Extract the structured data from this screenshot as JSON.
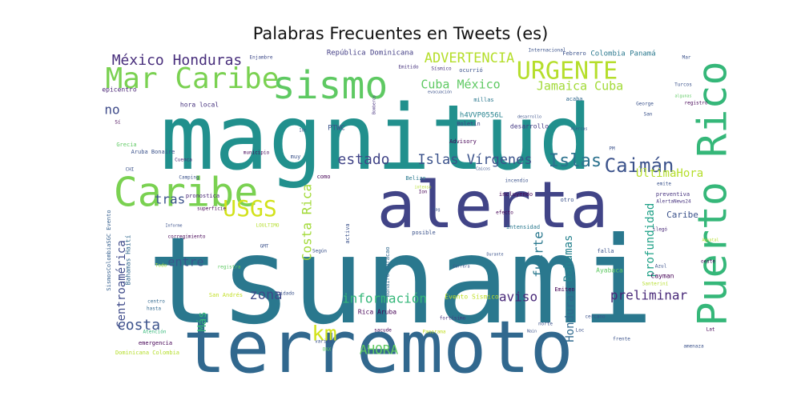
{
  "chart_data": {
    "type": "wordcloud",
    "title": "Palabras Frecuentes en Tweets (es)",
    "colormap": "viridis",
    "background": "#ffffff",
    "words": [
      {
        "text": "tsunami",
        "weight": 100,
        "color": "#2a788e"
      },
      {
        "text": "magnitud",
        "weight": 88,
        "color": "#21908d"
      },
      {
        "text": "terremoto",
        "weight": 76,
        "color": "#31688e"
      },
      {
        "text": "alerta",
        "weight": 64,
        "color": "#414487"
      },
      {
        "text": "sismo",
        "weight": 40,
        "color": "#5ec962"
      },
      {
        "text": "Caribe",
        "weight": 38,
        "color": "#7ad151"
      },
      {
        "text": "Puerto Rico",
        "weight": 38,
        "color": "#35b779"
      },
      {
        "text": "Mar Caribe",
        "weight": 28,
        "color": "#7ad151"
      },
      {
        "text": "URGENTE",
        "weight": 22,
        "color": "#b5de2b"
      },
      {
        "text": "USGS",
        "weight": 22,
        "color": "#d2e21b"
      },
      {
        "text": "Caimán",
        "weight": 20,
        "color": "#3b528b"
      },
      {
        "text": "Islas Vírgenes",
        "weight": 14,
        "color": "#3b528b"
      },
      {
        "text": "Islas",
        "weight": 18,
        "color": "#2c728e"
      },
      {
        "text": "km",
        "weight": 20,
        "color": "#d2e21b"
      },
      {
        "text": "estado",
        "weight": 16,
        "color": "#414487"
      },
      {
        "text": "México Honduras",
        "weight": 15,
        "color": "#472d7b"
      },
      {
        "text": "ADVERTENCIA",
        "weight": 14,
        "color": "#b5de2b"
      },
      {
        "text": "Costa Rica",
        "weight": 14,
        "color": "#a2da37"
      },
      {
        "text": "información",
        "weight": 14,
        "color": "#35b779"
      },
      {
        "text": "Cuba México",
        "weight": 13,
        "color": "#5ec962"
      },
      {
        "text": "Jamaica Cuba",
        "weight": 13,
        "color": "#a2da37"
      },
      {
        "text": "costa",
        "weight": 15,
        "color": "#3b528b"
      },
      {
        "text": "zona",
        "weight": 14,
        "color": "#3e4989"
      },
      {
        "text": "tras",
        "weight": 13,
        "color": "#3b528b"
      },
      {
        "text": "entre",
        "weight": 13,
        "color": "#39558c"
      },
      {
        "text": "aviso",
        "weight": 13,
        "color": "#482878"
      },
      {
        "text": "preliminar",
        "weight": 13,
        "color": "#482878"
      },
      {
        "text": "fuerte",
        "weight": 13,
        "color": "#2a788e"
      },
      {
        "text": "profundidad",
        "weight": 12,
        "color": "#1fa187"
      },
      {
        "text": "Bahamas",
        "weight": 12,
        "color": "#26828e"
      },
      {
        "text": "Honduras",
        "weight": 12,
        "color": "#306a8e"
      },
      {
        "text": "Centroamérica",
        "weight": 11,
        "color": "#3e4a89"
      },
      {
        "text": "AHORA",
        "weight": 13,
        "color": "#5ec962"
      },
      {
        "text": "Más",
        "weight": 12,
        "color": "#35b779"
      },
      {
        "text": "ÚltimaHora",
        "weight": 12,
        "color": "#b5de2b"
      },
      {
        "text": "Caribe",
        "weight": 9,
        "color": "#3b528b"
      },
      {
        "text": "no",
        "weight": 12,
        "color": "#3e4a89"
      },
      {
        "text": "República Dominicana",
        "weight": 7,
        "color": "#433e85"
      },
      {
        "text": "Colombia Panamá",
        "weight": 7,
        "color": "#2a788e"
      },
      {
        "text": "h4VVP0556L",
        "weight": 7,
        "color": "#26828e"
      },
      {
        "text": "PTWC",
        "weight": 7,
        "color": "#3b528b"
      },
      {
        "text": "Bahamas Haití",
        "weight": 6,
        "color": "#31688e"
      },
      {
        "text": "SismosColombiaSGC Evento",
        "weight": 5,
        "color": "#355f8d"
      },
      {
        "text": "desarrollo",
        "weight": 6,
        "color": "#443983"
      },
      {
        "text": "epicentro",
        "weight": 6,
        "color": "#482475"
      },
      {
        "text": "hora local",
        "weight": 6,
        "color": "#46327e"
      },
      {
        "text": "Evento Sísmico",
        "weight": 6,
        "color": "#c0df25"
      },
      {
        "text": "Bonaire Curacao",
        "weight": 5,
        "color": "#31688e"
      },
      {
        "text": "Aruba Bonaire",
        "weight": 5,
        "color": "#3b528b"
      },
      {
        "text": "Dominicana Colombia",
        "weight": 5,
        "color": "#b5de2b"
      },
      {
        "text": "San Andrés",
        "weight": 5,
        "color": "#c2df23"
      },
      {
        "text": "Rica Aruba",
        "weight": 6,
        "color": "#440154"
      },
      {
        "text": "Cayman",
        "weight": 6,
        "color": "#440154"
      },
      {
        "text": "Ayabaca",
        "weight": 5,
        "color": "#5ec962"
      },
      {
        "text": "emergencia",
        "weight": 5,
        "color": "#440154"
      },
      {
        "text": "intensidad",
        "weight": 5,
        "color": "#2a788e"
      },
      {
        "text": "pronostica",
        "weight": 5,
        "color": "#482475"
      },
      {
        "text": "fortísimo",
        "weight": 4,
        "color": "#46327e"
      },
      {
        "text": "Grecia",
        "weight": 5,
        "color": "#5ec962"
      },
      {
        "text": "Febrero",
        "weight": 5,
        "color": "#3b528b"
      },
      {
        "text": "Internacional",
        "weight": 4,
        "color": "#3b528b"
      },
      {
        "text": "millas",
        "weight": 5,
        "color": "#2a788e"
      },
      {
        "text": "acaba",
        "weight": 5,
        "color": "#31688e"
      },
      {
        "text": "Advisory",
        "weight": 5,
        "color": "#440154"
      },
      {
        "text": "Boletín",
        "weight": 5,
        "color": "#414487"
      },
      {
        "text": "Belize",
        "weight": 5,
        "color": "#2a788e"
      },
      {
        "text": "Emitido",
        "weight": 4,
        "color": "#46327e"
      },
      {
        "text": "Sísmico",
        "weight": 4,
        "color": "#46327e"
      },
      {
        "text": "ocurrió",
        "weight": 5,
        "color": "#3b528b"
      },
      {
        "text": "Enjambre",
        "weight": 4,
        "color": "#3e4a89"
      },
      {
        "text": "Cuenca",
        "weight": 4,
        "color": "#482878"
      },
      {
        "text": "Camping",
        "weight": 4,
        "color": "#3b528b"
      },
      {
        "text": "municipio",
        "weight": 4,
        "color": "#440154"
      },
      {
        "text": "como",
        "weight": 5,
        "color": "#440154"
      },
      {
        "text": "muy",
        "weight": 5,
        "color": "#3b528b"
      },
      {
        "text": "incluyendo",
        "weight": 5,
        "color": "#440154"
      },
      {
        "text": "otro",
        "weight": 5,
        "color": "#3b528b"
      },
      {
        "text": "preventiva",
        "weight": 5,
        "color": "#46327e"
      },
      {
        "text": "AlertaNews24",
        "weight": 4,
        "color": "#46327e"
      },
      {
        "text": "ilegó",
        "weight": 4,
        "color": "#482878"
      },
      {
        "text": "corregimiento",
        "weight": 4,
        "color": "#440154"
      },
      {
        "text": "superficie",
        "weight": 4,
        "color": "#440154"
      },
      {
        "text": "LOULTIMO",
        "weight": 4,
        "color": "#b5de2b"
      },
      {
        "text": "GMT",
        "weight": 4,
        "color": "#3b528b"
      },
      {
        "text": "activa",
        "weight": 5,
        "color": "#3b528b"
      },
      {
        "text": "posible",
        "weight": 5,
        "color": "#3b528b"
      },
      {
        "text": "Según",
        "weight": 4,
        "color": "#3b528b"
      },
      {
        "text": "efecto",
        "weight": 4,
        "color": "#440154"
      },
      {
        "text": "falla",
        "weight": 5,
        "color": "#3b528b"
      },
      {
        "text": "Azul",
        "weight": 4,
        "color": "#3b528b"
      },
      {
        "text": "oeste",
        "weight": 4,
        "color": "#440154"
      },
      {
        "text": "centro",
        "weight": 4,
        "color": "#31688e"
      },
      {
        "text": "hasta",
        "weight": 4,
        "color": "#31688e"
      },
      {
        "text": "Atención",
        "weight": 4,
        "color": "#35b779"
      },
      {
        "text": "registra",
        "weight": 4,
        "color": "#5ec962"
      },
      {
        "text": "Cuidado",
        "weight": 4,
        "color": "#3b528b"
      },
      {
        "text": "sacude",
        "weight": 4,
        "color": "#440154"
      },
      {
        "text": "varias",
        "weight": 4,
        "color": "#3b528b"
      },
      {
        "text": "Emiten",
        "weight": 5,
        "color": "#440154"
      },
      {
        "text": "cercano",
        "weight": 4,
        "color": "#3b528b"
      },
      {
        "text": "norte",
        "weight": 4,
        "color": "#3b528b"
      },
      {
        "text": "frente",
        "weight": 4,
        "color": "#3b528b"
      },
      {
        "text": "amenaza",
        "weight": 4,
        "color": "#3b528b"
      },
      {
        "text": "Lat",
        "weight": 4,
        "color": "#440154"
      },
      {
        "text": "Todo",
        "weight": 4,
        "color": "#a2da37"
      },
      {
        "text": "Panorama",
        "weight": 4,
        "color": "#c2df23"
      },
      {
        "text": "OAX",
        "weight": 4,
        "color": "#5ec962"
      },
      {
        "text": "Loc",
        "weight": 4,
        "color": "#3b528b"
      },
      {
        "text": "Sí",
        "weight": 4,
        "color": "#440154"
      },
      {
        "text": "CHI",
        "weight": 4,
        "color": "#3b528b"
      },
      {
        "text": "PM",
        "weight": 4,
        "color": "#3b528b"
      },
      {
        "text": "George",
        "weight": 4,
        "color": "#3b528b"
      },
      {
        "text": "San",
        "weight": 4,
        "color": "#3b528b"
      },
      {
        "text": "registró",
        "weight": 4,
        "color": "#440154"
      },
      {
        "text": "Turcos",
        "weight": 4,
        "color": "#3b528b"
      },
      {
        "text": "Mar",
        "weight": 4,
        "color": "#3b528b"
      },
      {
        "text": "desarrollo",
        "weight": 3,
        "color": "#3b528b"
      },
      {
        "text": "Alercas",
        "weight": 3,
        "color": "#3b528b"
      },
      {
        "text": "Int",
        "weight": 3,
        "color": "#3b528b"
      },
      {
        "text": "Bomberos",
        "weight": 3,
        "color": "#46327e"
      },
      {
        "text": "incendio",
        "weight": 4,
        "color": "#3b528b"
      },
      {
        "text": "Caicos",
        "weight": 3,
        "color": "#3b528b"
      },
      {
        "text": "intenso",
        "weight": 3,
        "color": "#b5de2b"
      },
      {
        "text": "Ion",
        "weight": 4,
        "color": "#440154"
      },
      {
        "text": "Mag",
        "weight": 3,
        "color": "#3b528b"
      },
      {
        "text": "emite",
        "weight": 4,
        "color": "#3b528b"
      },
      {
        "text": "Santeriní",
        "weight": 4,
        "color": "#b5de2b"
      },
      {
        "text": "algunas",
        "weight": 3,
        "color": "#5ec962"
      },
      {
        "text": "Informe",
        "weight": 3,
        "color": "#3b528b"
      },
      {
        "text": "Aguatal",
        "weight": 3,
        "color": "#b5de2b"
      },
      {
        "text": "Durante",
        "weight": 3,
        "color": "#3b528b"
      },
      {
        "text": "Carrera",
        "weight": 3,
        "color": "#3b528b"
      },
      {
        "text": "Nain",
        "weight": 3,
        "color": "#3b528b"
      },
      {
        "text": "evacuación",
        "weight": 3,
        "color": "#3b528b"
      }
    ]
  }
}
